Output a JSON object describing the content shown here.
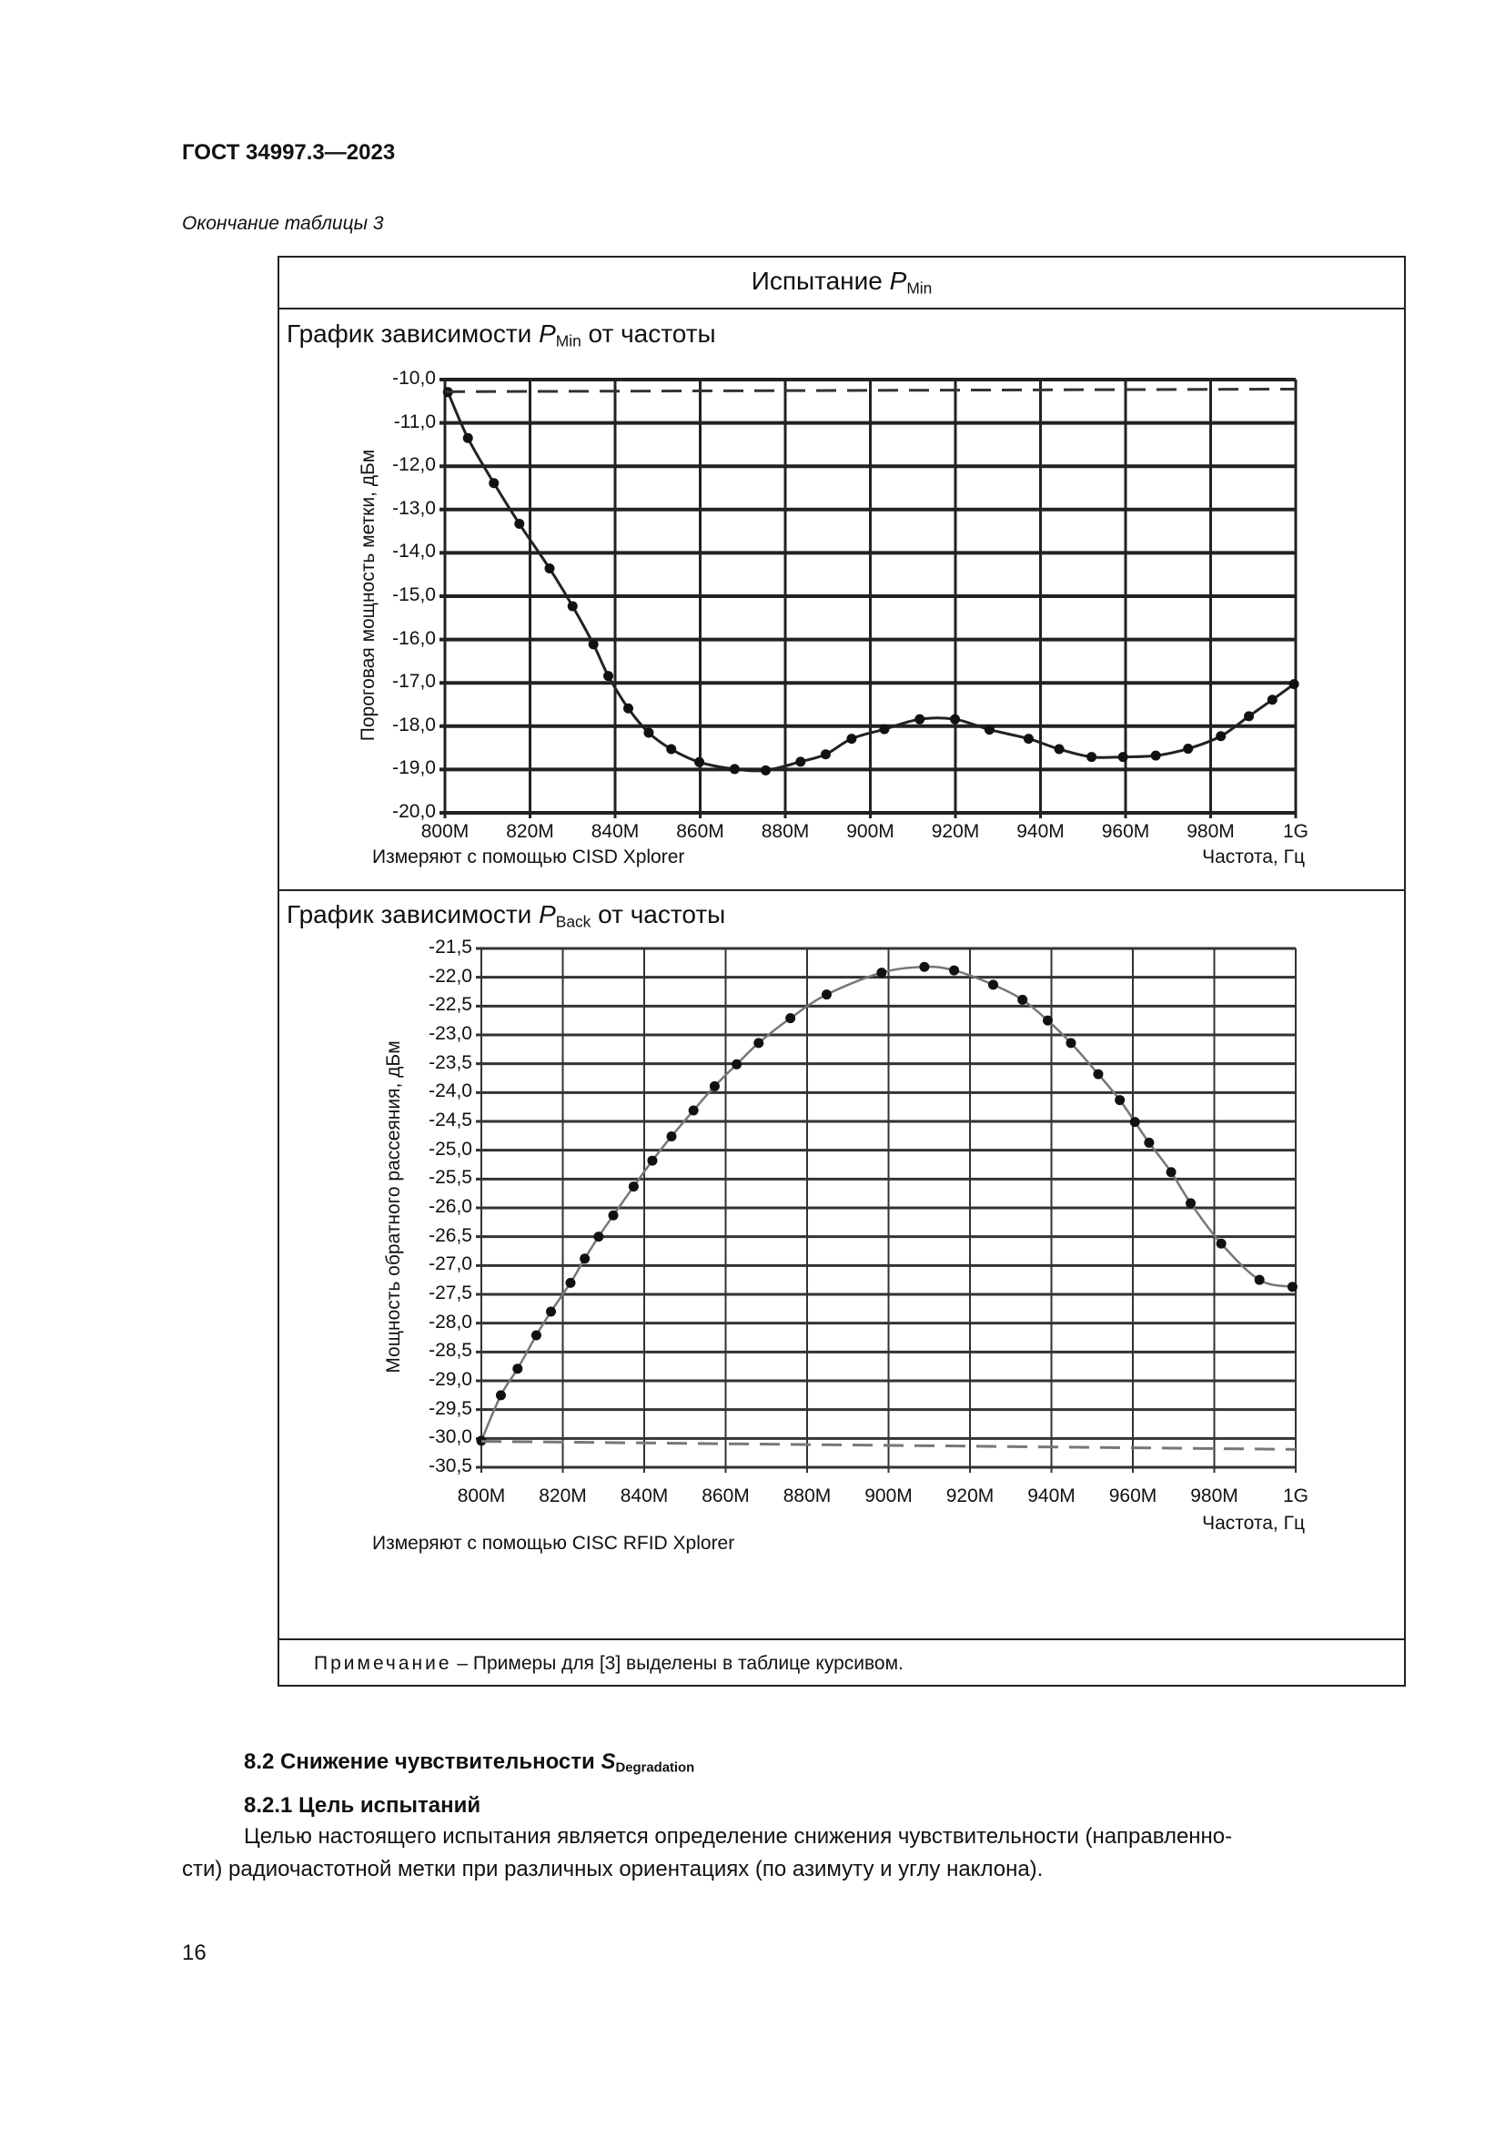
{
  "header": {
    "doc_id": "ГОСТ 34997.3—2023",
    "continuation": "Окончание таблицы 3"
  },
  "table": {
    "title_prefix": "Испытание ",
    "title_var": "P",
    "title_sub": "Min",
    "note_label": "Примечание",
    "note_text": " – Примеры для [3] выделены в таблице курсивом."
  },
  "chart_data": [
    {
      "type": "line",
      "title_prefix": "График зависимости ",
      "title_var": "P",
      "title_sub": "Min",
      "title_suffix": " от частоты",
      "ylabel": "Пороговая мощность метки, дБм",
      "xlabel": "Частота, Гц",
      "source": "Измеряют с помощью CISD Xplorer",
      "xlim": [
        800,
        1000
      ],
      "ylim": [
        -20,
        -10
      ],
      "x_ticks": [
        "800M",
        "820M",
        "840M",
        "860M",
        "880M",
        "900M",
        "920M",
        "940M",
        "960M",
        "980M",
        "1G"
      ],
      "y_ticks": [
        "-10,0",
        "-11,0",
        "-12,0",
        "-13,0",
        "-14,0",
        "-15,0",
        "-16,0",
        "-17,0",
        "-18,0",
        "-19,0",
        "-20,0"
      ],
      "grid": true,
      "line_color": "#222222",
      "series": [
        {
          "x": [
            800.7,
            805.4,
            811.5,
            817.5,
            824.6,
            830,
            834.9,
            838.4,
            843.1,
            847.9,
            853.2,
            859.8,
            868.1,
            875.4,
            883.6,
            889.5,
            895.6,
            903.3,
            911.6,
            919.9,
            928,
            937.2,
            944.4,
            952,
            959.4,
            967.1,
            974.7,
            982.4,
            989,
            994.5,
            999.6
          ],
          "y": [
            -10.29,
            -11.35,
            -12.39,
            -13.33,
            -14.36,
            -15.23,
            -16.11,
            -16.84,
            -17.59,
            -18.15,
            -18.53,
            -18.83,
            -18.99,
            -19.02,
            -18.82,
            -18.65,
            -18.29,
            -18.07,
            -17.84,
            -17.84,
            -18.08,
            -18.29,
            -18.53,
            -18.71,
            -18.71,
            -18.68,
            -18.52,
            -18.23,
            -17.77,
            -17.39,
            -17.03
          ],
          "style": "solid-markers"
        },
        {
          "x": [
            800,
            1000
          ],
          "y": [
            -10.28,
            -10.22
          ],
          "style": "dashed"
        }
      ]
    },
    {
      "type": "line",
      "title_prefix": "График зависимости ",
      "title_var": "P",
      "title_sub": "Back",
      "title_suffix": " от частоты",
      "ylabel": "Мощность обратного рассеяния, дБм",
      "xlabel": "Частота, Гц",
      "source": "Измеряют с помощью CISC RFID Xplorer",
      "xlim": [
        800,
        1000
      ],
      "ylim": [
        -30.5,
        -21.5
      ],
      "x_ticks": [
        "800M",
        "820M",
        "840M",
        "860M",
        "880M",
        "900M",
        "920M",
        "940M",
        "960M",
        "980M",
        "1G"
      ],
      "y_ticks": [
        "-21,5",
        "-22,0",
        "-22,5",
        "-23,0",
        "-23,5",
        "-24,0",
        "-24,5",
        "-25,0",
        "-25,5",
        "-26,0",
        "-26,5",
        "-27,0",
        "-27,5",
        "-28,0",
        "-28,5",
        "-29,0",
        "-29,5",
        "-30,0",
        "-30,5"
      ],
      "grid": true,
      "line_color": "#777777",
      "series": [
        {
          "x": [
            800,
            804.8,
            808.9,
            813.5,
            817.1,
            821.9,
            825.4,
            828.8,
            832.4,
            837.4,
            842,
            846.7,
            852.1,
            857.3,
            862.7,
            868.1,
            875.9,
            884.8,
            898.3,
            908.8,
            916.1,
            925.7,
            932.9,
            939.1,
            944.8,
            951.5,
            956.8,
            960.5,
            964,
            969.4,
            974.2,
            981.7,
            991.1,
            999.2
          ],
          "y": [
            -30.04,
            -29.25,
            -28.79,
            -28.21,
            -27.8,
            -27.3,
            -26.88,
            -26.5,
            -26.13,
            -25.63,
            -25.18,
            -24.76,
            -24.31,
            -23.89,
            -23.51,
            -23.14,
            -22.71,
            -22.3,
            -21.92,
            -21.82,
            -21.88,
            -22.13,
            -22.39,
            -22.75,
            -23.14,
            -23.68,
            -24.13,
            -24.51,
            -24.87,
            -25.38,
            -25.92,
            -26.62,
            -27.25,
            -27.37
          ],
          "style": "solid-markers"
        },
        {
          "x": [
            800,
            1000
          ],
          "y": [
            -30.05,
            -30.19
          ],
          "style": "dashed"
        }
      ]
    }
  ],
  "section": {
    "heading_prefix": "8.2 Снижение чувствительности ",
    "heading_var": "S",
    "heading_sub": "Degradation",
    "subheading": "8.2.1 Цель испытаний",
    "para_line1": "Целью настоящего испытания является определение снижения чувствительности (направленно-",
    "para_line2": "сти) радиочастотной метки при различных ориентациях (по азимуту и углу наклона)."
  },
  "footer": {
    "page_number": "16"
  }
}
